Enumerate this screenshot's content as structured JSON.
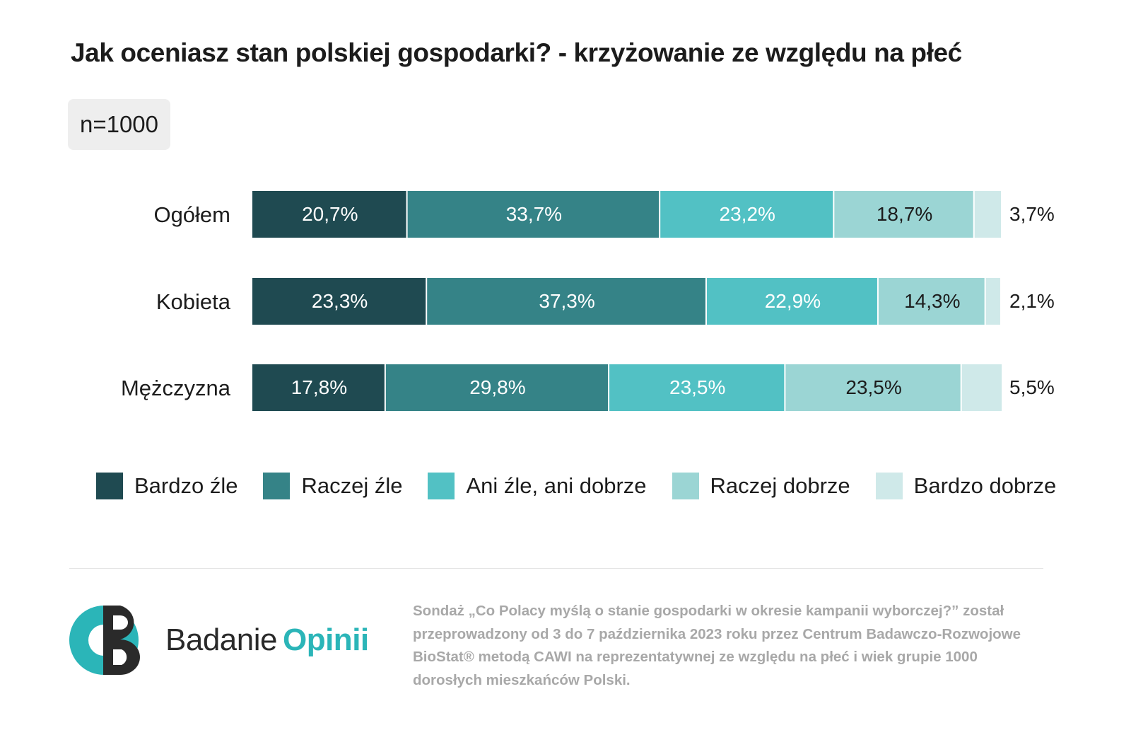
{
  "title": "Jak oceniasz stan polskiej gospodarki? - krzyżowanie ze względu na płeć",
  "sample": "n=1000",
  "chart_data": {
    "type": "bar",
    "orientation": "horizontal",
    "stacked": true,
    "percent": true,
    "title": "Jak oceniasz stan polskiej gospodarki? - krzyżowanie ze względu na płeć",
    "categories": [
      "Ogółem",
      "Kobieta",
      "Mężczyzna"
    ],
    "series": [
      {
        "name": "Bardzo źle",
        "color": "#1f4a51",
        "values": [
          20.7,
          23.3,
          17.8
        ],
        "labels": [
          "20,7%",
          "23,3%",
          "17,8%"
        ]
      },
      {
        "name": "Raczej źle",
        "color": "#358387",
        "values": [
          33.7,
          37.3,
          29.8
        ],
        "labels": [
          "33,7%",
          "37,3%",
          "29,8%"
        ]
      },
      {
        "name": "Ani źle, ani dobrze",
        "color": "#52c1c4",
        "values": [
          23.2,
          22.9,
          23.5
        ],
        "labels": [
          "23,2%",
          "22,9%",
          "23,5%"
        ]
      },
      {
        "name": "Raczej dobrze",
        "color": "#9bd5d4",
        "values": [
          18.7,
          14.3,
          23.5
        ],
        "labels": [
          "18,7%",
          "14,3%",
          "23,5%"
        ]
      },
      {
        "name": "Bardzo dobrze",
        "color": "#cfe9e9",
        "values": [
          3.7,
          2.1,
          5.5
        ],
        "labels": [
          "3,7%",
          "2,1%",
          "5,5%"
        ]
      }
    ],
    "label_colors": [
      "#ffffff",
      "#ffffff",
      "#ffffff",
      "#1c1c1c",
      "#1c1c1c"
    ],
    "xlim": [
      0,
      100
    ],
    "legend": "bottom",
    "grid": false
  },
  "logo": {
    "word1": "Badanie",
    "word2": "Opinii",
    "primary": "#2bb5b8",
    "secondary": "#2a2a2a"
  },
  "footnote": "Sondaż „Co Polacy myślą o stanie gospodarki w okresie kampanii wyborczej?” został przeprowadzony od 3 do 7 października 2023 roku przez Centrum Badawczo-Rozwojowe BioStat® metodą CAWI na reprezentatywnej ze względu na płeć i wiek grupie 1000 dorosłych mieszkańców Polski."
}
